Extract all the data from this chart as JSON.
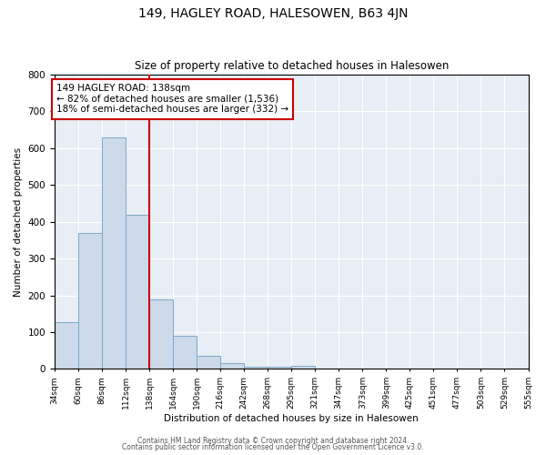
{
  "title": "149, HAGLEY ROAD, HALESOWEN, B63 4JN",
  "subtitle": "Size of property relative to detached houses in Halesowen",
  "xlabel": "Distribution of detached houses by size in Halesowen",
  "ylabel": "Number of detached properties",
  "bin_labels": [
    "34sqm",
    "60sqm",
    "86sqm",
    "112sqm",
    "138sqm",
    "164sqm",
    "190sqm",
    "216sqm",
    "242sqm",
    "268sqm",
    "295sqm",
    "321sqm",
    "347sqm",
    "373sqm",
    "399sqm",
    "425sqm",
    "451sqm",
    "477sqm",
    "503sqm",
    "529sqm",
    "555sqm"
  ],
  "bar_heights": [
    128,
    370,
    630,
    420,
    190,
    90,
    35,
    15,
    5,
    5,
    8,
    0,
    0,
    0,
    0,
    0,
    0,
    0,
    0,
    0
  ],
  "bar_color": "#ccdaea",
  "bar_edgecolor": "#7aaac8",
  "bar_linewidth": 0.7,
  "ref_line_color": "#cc0000",
  "annotation_text": "149 HAGLEY ROAD: 138sqm\n← 82% of detached houses are smaller (1,536)\n18% of semi-detached houses are larger (332) →",
  "annotation_fontsize": 7.5,
  "ylim": [
    0,
    800
  ],
  "yticks": [
    0,
    100,
    200,
    300,
    400,
    500,
    600,
    700,
    800
  ],
  "background_color": "#e8eef5",
  "footer_line1": "Contains HM Land Registry data © Crown copyright and database right 2024.",
  "footer_line2": "Contains public sector information licensed under the Open Government Licence v3.0."
}
